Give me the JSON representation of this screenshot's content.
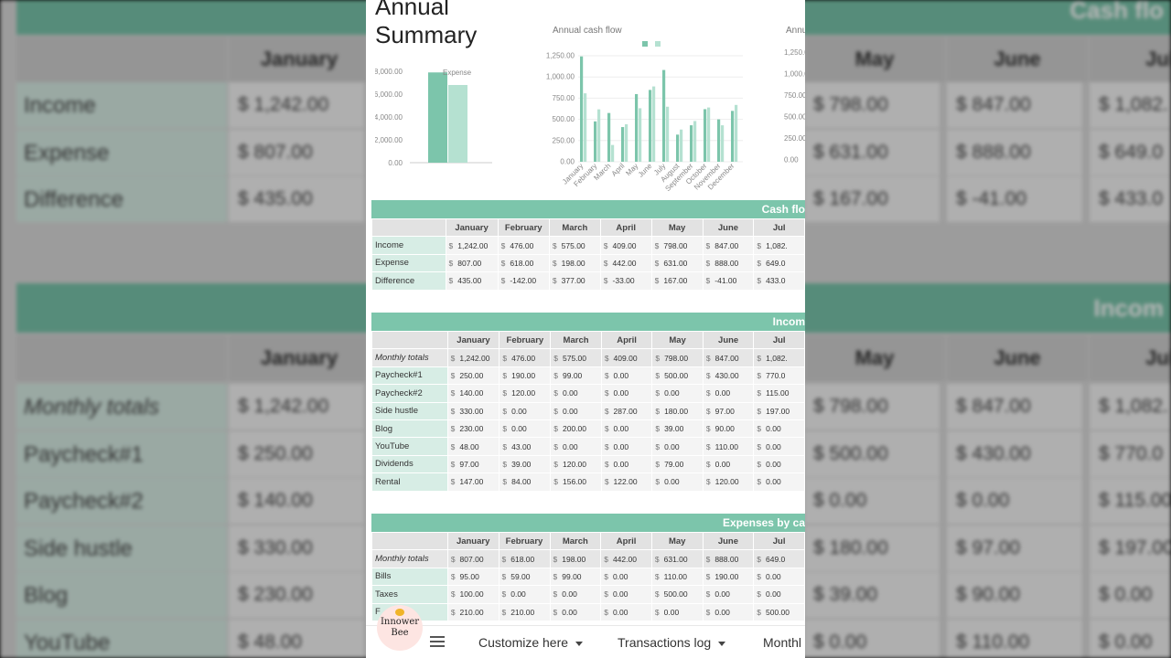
{
  "title": "Annual\nSummary",
  "bg": {
    "header_right": "Cash flo",
    "income_right": "Incom",
    "months": [
      "January",
      "May",
      "June",
      "Jul"
    ],
    "rows1": [
      {
        "label": "Income",
        "jan": "1,242.00",
        "may": "798.00",
        "jun": "847.00",
        "jul": "1,082."
      },
      {
        "label": "Expense",
        "jan": "807.00",
        "may": "631.00",
        "jun": "888.00",
        "jul": "649.0"
      },
      {
        "label": "Difference",
        "jan": "435.00",
        "may": "167.00",
        "jun": "-41.00",
        "jul": "433.0"
      }
    ],
    "rows2": [
      {
        "label": "Monthly totals",
        "jan": "1,242.00",
        "may": "798.00",
        "jun": "847.00",
        "jul": "1,082."
      },
      {
        "label": "Paycheck#1",
        "jan": "250.00",
        "may": "500.00",
        "jun": "430.00",
        "jul": "770.0"
      },
      {
        "label": "Paycheck#2",
        "jan": "140.00",
        "may": "0.00",
        "jun": "0.00",
        "jul": "115.00"
      },
      {
        "label": "Side hustle",
        "jan": "330.00",
        "may": "180.00",
        "jun": "97.00",
        "jul": "197.00"
      },
      {
        "label": "Blog",
        "jan": "230.00",
        "may": "39.00",
        "jun": "90.00",
        "jul": "0.00"
      },
      {
        "label": "YouTube",
        "jan": "48.00",
        "may": "0.00",
        "jun": "110.00",
        "jul": "0.00"
      }
    ]
  },
  "bar_chart": {
    "legend": "Expense",
    "yticks": [
      "8,000.00",
      "6,000.00",
      "4,000.00",
      "2,000.00",
      "0.00"
    ],
    "values": [
      7900,
      6800
    ],
    "colors": [
      "#7cc5ab",
      "#b5e1d1"
    ]
  },
  "chart_data": {
    "type": "bar",
    "title": "Annual cash flow",
    "categories": [
      "January",
      "February",
      "March",
      "April",
      "May",
      "June",
      "July",
      "August",
      "September",
      "October",
      "November",
      "December"
    ],
    "series": [
      {
        "values": [
          1242,
          476,
          575,
          409,
          798,
          847,
          1082,
          320,
          430,
          620,
          500,
          600
        ]
      },
      {
        "values": [
          807,
          618,
          198,
          442,
          631,
          888,
          649,
          380,
          480,
          640,
          430,
          670
        ]
      }
    ],
    "yticks": [
      "1,250.00",
      "1,000.00",
      "750.00",
      "500.00",
      "250.00",
      "0.00"
    ],
    "ylim": [
      0,
      1250
    ],
    "colors": [
      "#7cc5ab",
      "#b5e1d1"
    ]
  },
  "second_chart": {
    "title": "Annu",
    "yticks": [
      "1,250.00",
      "1,000.00",
      "750.00",
      "500.00",
      "250.00",
      "0.00"
    ]
  },
  "cashflow": {
    "band": "Cash flo",
    "months": [
      "January",
      "February",
      "March",
      "April",
      "May",
      "June",
      "Jul"
    ],
    "rows": [
      {
        "label": "Income",
        "vals": [
          "1,242.00",
          "476.00",
          "575.00",
          "409.00",
          "798.00",
          "847.00",
          "1,082."
        ]
      },
      {
        "label": "Expense",
        "vals": [
          "807.00",
          "618.00",
          "198.00",
          "442.00",
          "631.00",
          "888.00",
          "649.0"
        ]
      },
      {
        "label": "Difference",
        "vals": [
          "435.00",
          "-142.00",
          "377.00",
          "-33.00",
          "167.00",
          "-41.00",
          "433.0"
        ]
      }
    ]
  },
  "income": {
    "band": "Incom",
    "months": [
      "January",
      "February",
      "March",
      "April",
      "May",
      "June",
      "Jul"
    ],
    "rows": [
      {
        "label": "Monthly totals",
        "italic": true,
        "vals": [
          "1,242.00",
          "476.00",
          "575.00",
          "409.00",
          "798.00",
          "847.00",
          "1,082."
        ]
      },
      {
        "label": "Paycheck#1",
        "vals": [
          "250.00",
          "190.00",
          "99.00",
          "0.00",
          "500.00",
          "430.00",
          "770.0"
        ]
      },
      {
        "label": "Paycheck#2",
        "vals": [
          "140.00",
          "120.00",
          "0.00",
          "0.00",
          "0.00",
          "0.00",
          "115.00"
        ]
      },
      {
        "label": "Side hustle",
        "vals": [
          "330.00",
          "0.00",
          "0.00",
          "287.00",
          "180.00",
          "97.00",
          "197.00"
        ]
      },
      {
        "label": "Blog",
        "vals": [
          "230.00",
          "0.00",
          "200.00",
          "0.00",
          "39.00",
          "90.00",
          "0.00"
        ]
      },
      {
        "label": "YouTube",
        "vals": [
          "48.00",
          "43.00",
          "0.00",
          "0.00",
          "0.00",
          "110.00",
          "0.00"
        ]
      },
      {
        "label": "Dividends",
        "vals": [
          "97.00",
          "39.00",
          "120.00",
          "0.00",
          "79.00",
          "0.00",
          "0.00"
        ]
      },
      {
        "label": "Rental",
        "vals": [
          "147.00",
          "84.00",
          "156.00",
          "122.00",
          "0.00",
          "120.00",
          "0.00"
        ]
      }
    ]
  },
  "expenses": {
    "band": "Expenses by ca",
    "months": [
      "January",
      "February",
      "March",
      "April",
      "May",
      "June",
      "Jul"
    ],
    "rows": [
      {
        "label": "Monthly totals",
        "italic": true,
        "vals": [
          "807.00",
          "618.00",
          "198.00",
          "442.00",
          "631.00",
          "888.00",
          "649.0"
        ]
      },
      {
        "label": "Bills",
        "vals": [
          "95.00",
          "59.00",
          "99.00",
          "0.00",
          "110.00",
          "190.00",
          "0.00"
        ]
      },
      {
        "label": "Taxes",
        "vals": [
          "100.00",
          "0.00",
          "0.00",
          "0.00",
          "500.00",
          "0.00",
          "0.00"
        ]
      },
      {
        "label": "F",
        "vals": [
          "210.00",
          "210.00",
          "0.00",
          "0.00",
          "0.00",
          "0.00",
          "500.00"
        ]
      }
    ]
  },
  "bottom": {
    "tabs": [
      "Customize here",
      "Transactions log",
      "Monthl"
    ],
    "logo_line1": "Innower",
    "logo_line2": "Bee"
  },
  "currency_symbol": "$"
}
